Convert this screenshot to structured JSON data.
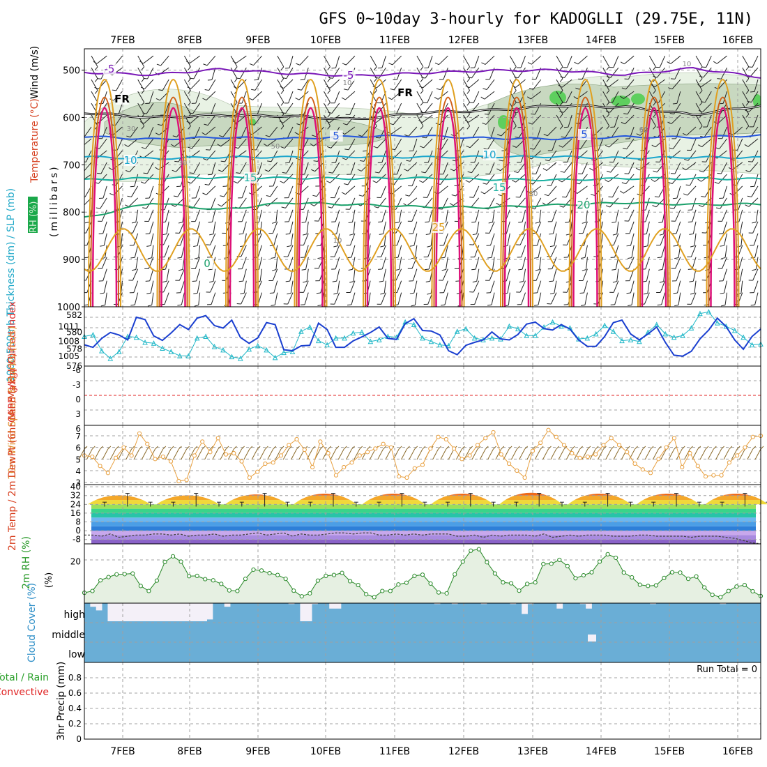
{
  "title": "GFS 0~10day 3-hourly for KADOGLLI (29.75E, 11N)",
  "dates": [
    "7FEB",
    "8FEB",
    "9FEB",
    "10FEB",
    "11FEB",
    "12FEB",
    "13FEB",
    "14FEB",
    "15FEB",
    "16FEB"
  ],
  "colors": {
    "grid": "#a0a0a0",
    "purple": "#7a18b8",
    "blue": "#2255dd",
    "cyan": "#1aa6cc",
    "teal": "#18b0a0",
    "green": "#1aa06a",
    "orange": "#e0a020",
    "darkorange": "#d06018",
    "magenta": "#dd1077",
    "rh_light": "#e8f2e4",
    "rh_mid": "#c8d8c0",
    "rh_dark": "#5ecf5e",
    "slp": "#1a3fd0",
    "thick": "#20b8c8",
    "wind": "#e8a040",
    "rh2m": "#2a8a2a",
    "cloud": "#6aaed6",
    "cloud_gap": "#f4f0f8",
    "red": "#e02020"
  },
  "chart_data": [
    {
      "type": "contour",
      "panel": "upper-air",
      "ylabel_parts": [
        "RH (%)",
        "Temperature (°C)",
        "Wind (m/s)",
        "(millibars)"
      ],
      "y_ticks": [
        "500",
        "600",
        "700",
        "800",
        "900",
        "1000"
      ],
      "ylim": [
        1000,
        450
      ],
      "temp_isotherms": [
        {
          "label": "-5",
          "p": [
            505,
            510,
            498,
            507,
            512,
            506,
            501,
            500,
            510,
            496,
            515
          ]
        },
        {
          "label": "FR",
          "p": [
            590,
            600,
            595,
            597,
            604,
            590,
            585,
            575,
            578,
            594,
            575
          ]
        },
        {
          "label": "5",
          "p": [
            640,
            646,
            642,
            645,
            640,
            639,
            644,
            645,
            641,
            642,
            638
          ]
        },
        {
          "label": "10",
          "p": [
            683,
            687,
            684,
            684,
            683,
            684,
            683,
            683,
            686,
            684,
            685
          ]
        },
        {
          "label": "15",
          "p": [
            732,
            728,
            727,
            728,
            729,
            728,
            731,
            732,
            729,
            729,
            730
          ]
        },
        {
          "label": "20",
          "p": [
            812,
            780,
            795,
            780,
            784,
            789,
            790,
            785,
            780,
            784,
            783
          ]
        }
      ],
      "contour_labels": [
        "-5",
        "-5",
        "FR",
        "FR",
        "5",
        "5",
        "10",
        "10",
        "15",
        "15",
        "20",
        "25",
        "0",
        "10",
        "30",
        "30",
        "50",
        "50",
        "10",
        "10",
        "30",
        "60"
      ]
    },
    {
      "type": "line",
      "panel": "slp-thickness",
      "ylabel": "1000-500mb Thickness (dm) / SLP (mb)",
      "left_ticks": [
        "582",
        "580",
        "578",
        "576"
      ],
      "right_ticks": [
        "1011",
        "1008",
        "1005"
      ],
      "slp_ylim": [
        1003,
        1015
      ],
      "slp": [
        1007.3,
        1006.8,
        1008.6,
        1009.8,
        1009.3,
        1008.3,
        1012.9,
        1012.4,
        1009.1,
        1008.2,
        1009.7,
        1011.4,
        1010.4,
        1012.7,
        1013.2,
        1011.2,
        1010.7,
        1012.3,
        1008.8,
        1007.6,
        1008.7,
        1011.8,
        1011.4,
        1006.3,
        1006.1,
        1007.1,
        1007.2,
        1011.7,
        1010.4,
        1006.8,
        1006.8,
        1008.1,
        1008.9,
        1009.8,
        1010.9,
        1008.6,
        1008.4,
        1011.6,
        1012.6,
        1010.2,
        1010.1,
        1009.3,
        1006.1,
        1005.3,
        1007.2,
        1007.8,
        1008.3,
        1009.9,
        1008.5,
        1008.3,
        1009.4,
        1011.5,
        1011.9,
        1010.6,
        1010.3,
        1011.4,
        1010.5,
        1008.3,
        1007.0,
        1007.0,
        1009.0,
        1011.8,
        1012.3,
        1009.5,
        1008.3,
        1009.5,
        1010.9,
        1007.8,
        1005.2,
        1005.0,
        1006.0,
        1008.5,
        1010.3,
        1012.7,
        1011.0,
        1008.3,
        1006.4,
        1009.0,
        1010.5
      ],
      "thick_ylim": [
        576,
        583
      ],
      "thickness": [
        579.5,
        579.7,
        577.8,
        576.9,
        577.7,
        579.5,
        579.4,
        578.8,
        578.7,
        578.1,
        577.7,
        577.2,
        577.2,
        579.3,
        579.5,
        578.3,
        577.9,
        577.1,
        576.9,
        578.0,
        578.4,
        577.9,
        577.0,
        577.6,
        577.7,
        580.1,
        580.6,
        579.0,
        578.5,
        579.3,
        579.3,
        579.9,
        580.0,
        578.9,
        579.1,
        579.5,
        579.4,
        581.2,
        580.9,
        579.3,
        578.9,
        578.5,
        578.4,
        580.1,
        580.4,
        579.3,
        579.1,
        579.3,
        579.2,
        580.7,
        580.4,
        579.6,
        579.6,
        580.6,
        581.2,
        580.7,
        580.5,
        579.2,
        579.3,
        579.8,
        580.8,
        580.1,
        579.0,
        579.1,
        578.9,
        580.0,
        580.9,
        579.8,
        579.4,
        579.6,
        580.5,
        582.2,
        582.4,
        581.1,
        580.7,
        580.2,
        579.4,
        578.5,
        578.6
      ]
    },
    {
      "type": "line",
      "panel": "li-cape",
      "ylabel": "CAPE (J/kg) / Lifted Index",
      "y_ticks": [
        "-6",
        "-3",
        "0",
        "3",
        "6"
      ],
      "lifted_index": "below range"
    },
    {
      "type": "line",
      "panel": "wind10m",
      "ylabel": "10m Wind Speed & Barbs (m/s)",
      "y_ticks": [
        "7",
        "6",
        "5",
        "4",
        "3"
      ],
      "ylim": [
        2.8,
        7.9
      ],
      "values": [
        5.3,
        5.2,
        4.4,
        3.8,
        5.1,
        6.0,
        5.3,
        7.2,
        6.3,
        5.0,
        5.2,
        4.8,
        3.1,
        3.2,
        5.3,
        6.5,
        5.6,
        6.8,
        5.4,
        5.5,
        4.8,
        3.4,
        3.9,
        4.6,
        4.7,
        5.3,
        6.2,
        6.7,
        5.8,
        4.3,
        6.5,
        5.5,
        3.6,
        4.3,
        4.7,
        5.3,
        5.6,
        5.9,
        6.3,
        6.0,
        3.5,
        3.4,
        4.2,
        4.5,
        5.9,
        6.9,
        6.7,
        5.9,
        5.0,
        5.3,
        6.2,
        6.8,
        7.3,
        5.4,
        4.6,
        4.0,
        3.4,
        5.7,
        6.4,
        7.5,
        6.9,
        6.2,
        5.5,
        5.1,
        5.2,
        5.4,
        6.2,
        6.8,
        6.2,
        5.6,
        4.6,
        4.1,
        3.8,
        5.0,
        6.0,
        6.8,
        4.3,
        5.5,
        4.4,
        3.5,
        3.6,
        3.6,
        4.7,
        5.3,
        6.0,
        6.9,
        7.0
      ]
    },
    {
      "type": "area",
      "panel": "temp2m",
      "ylabel": "2m Temp / 2m DewPt (6hr Min/Max) (°C)",
      "y_ticks": [
        "40",
        "32",
        "24",
        "16",
        "8",
        "0",
        "-8"
      ],
      "ylim": [
        -12,
        42
      ],
      "days_max": [
        34,
        34,
        35,
        36,
        36,
        36,
        37,
        36,
        36,
        36
      ],
      "night_min": 24,
      "dewpoint": [
        -4,
        -4,
        -5,
        -3,
        -6,
        -5,
        -4,
        -4,
        -3,
        -3,
        -4,
        -3,
        -5,
        -4,
        -4,
        -3,
        -5,
        -4,
        -4,
        -3,
        -2,
        -4,
        -3,
        -2,
        -5,
        -3,
        -4,
        -4,
        -3,
        -2,
        -2,
        -3,
        -2,
        -2,
        -4,
        -4,
        -3,
        -4,
        -3,
        -4,
        -3,
        -3,
        -3,
        -5,
        -5,
        -4,
        -6,
        -4,
        -5,
        -4,
        -4,
        -4,
        -5,
        -3,
        -6,
        -5,
        -4,
        -5,
        -4,
        -4,
        -4,
        -5,
        -5,
        -5,
        -4,
        -4,
        -5,
        -5,
        -5,
        -5,
        -6,
        -5,
        -5,
        -5,
        -6,
        -7,
        -9,
        -11,
        -12
      ]
    },
    {
      "type": "area",
      "panel": "rh2m",
      "ylabel": "2m RH (%)",
      "y_ticks": [
        "20"
      ],
      "ylim": [
        6,
        26
      ],
      "values": [
        9.5,
        10.1,
        13.7,
        14.8,
        15.7,
        15.8,
        16.0,
        11.8,
        10.1,
        13.6,
        19.9,
        21.8,
        20.0,
        15.1,
        15.2,
        14.1,
        13.7,
        12.5,
        10.3,
        10.1,
        14.2,
        17.3,
        17.0,
        16.1,
        15.5,
        14.2,
        10.2,
        8.3,
        9.3,
        13.6,
        15.2,
        15.5,
        16.2,
        13.4,
        12.1,
        9.0,
        8.0,
        10.1,
        10.1,
        12.3,
        12.9,
        15.2,
        15.6,
        12.6,
        9.6,
        9.3,
        15.7,
        20.0,
        23.7,
        24.2,
        19.8,
        16.0,
        13.0,
        12.7,
        10.2,
        12.5,
        13.0,
        19.2,
        19.3,
        20.6,
        18.5,
        14.4,
        15.4,
        16.4,
        20.0,
        22.5,
        21.3,
        16.3,
        14.7,
        12.2,
        11.8,
        12.0,
        14.5,
        16.4,
        16.3,
        14.2,
        15.0,
        11.3,
        8.8,
        8.0,
        10.1,
        11.6,
        12.1,
        10.0,
        8.4
      ]
    },
    {
      "type": "bar",
      "panel": "cloud",
      "ylabel": "Cloud Cover (%)",
      "levels": [
        "high",
        "middle",
        "low"
      ],
      "high_clear_fraction": [
        0,
        0.2,
        0.4,
        0,
        1,
        1,
        1,
        1,
        1,
        1,
        1,
        1,
        1,
        1,
        1,
        1,
        1,
        1,
        1,
        1,
        1,
        0.9,
        0,
        0,
        0.2,
        0,
        0,
        0,
        0,
        0,
        0,
        0,
        0,
        0,
        0,
        0.05,
        0,
        1,
        1,
        0.05,
        0,
        0,
        0.3,
        0.3,
        0,
        0,
        0,
        0,
        0,
        0,
        0,
        0,
        0,
        0,
        0,
        0,
        0,
        0,
        0,
        0,
        0.05,
        0,
        0,
        0.05,
        0,
        0,
        0,
        0,
        0.05,
        0,
        0,
        0,
        0,
        0.05,
        0,
        0.6,
        0.05,
        0,
        0,
        0,
        0,
        0.3,
        0,
        0,
        0,
        0.05,
        0.3,
        0,
        0,
        0,
        0,
        0,
        0,
        0,
        0,
        0,
        0,
        0.05,
        0,
        0,
        0,
        0,
        0,
        0,
        0,
        0,
        0,
        0,
        0,
        0.05,
        0,
        0,
        0,
        0,
        0,
        0
      ],
      "middle_clear_cells": [
        61
      ]
    },
    {
      "type": "bar",
      "panel": "precip",
      "ylabel": "3hr Precip (mm)",
      "ylabel_extra": [
        "Total / Rain",
        "Convective"
      ],
      "y_ticks": [
        "0.8",
        "0.6",
        "0.4",
        "0.2",
        "0"
      ],
      "ylim": [
        0,
        1
      ],
      "run_total_label": "Run Total = 0",
      "values": []
    }
  ]
}
